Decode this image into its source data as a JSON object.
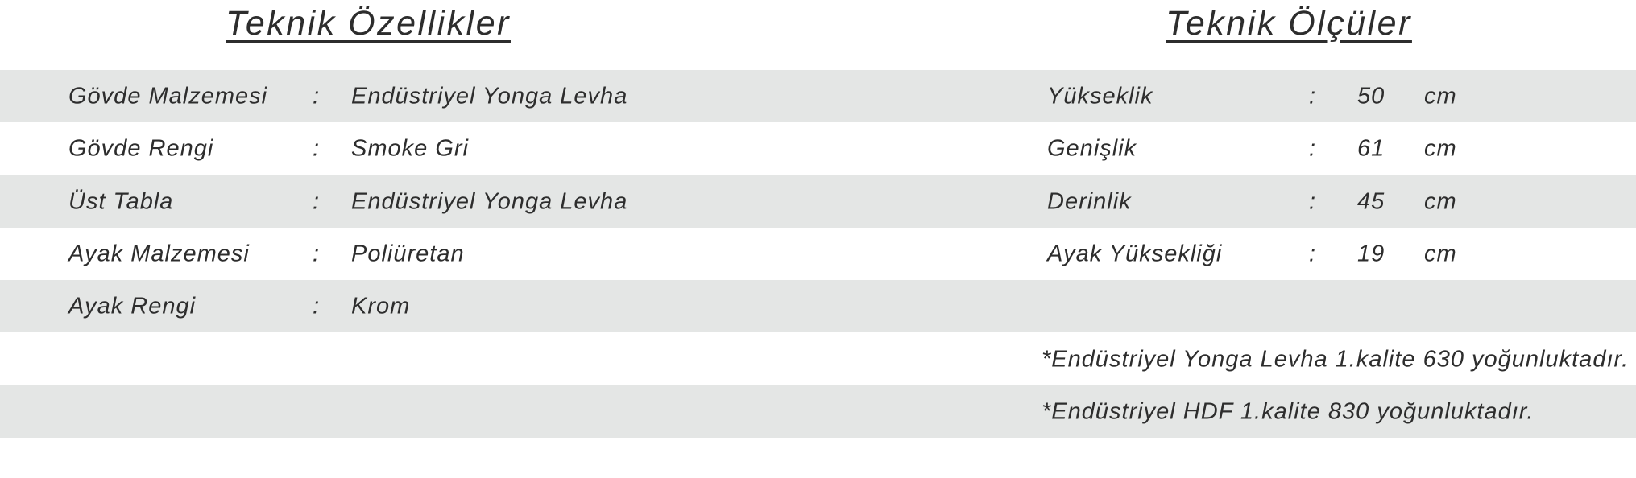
{
  "page": {
    "background_color": "#ffffff",
    "stripe_color": "#e4e6e5",
    "text_color": "#2d2d2d"
  },
  "left_section": {
    "title": "Teknik Özellikler",
    "rows": [
      {
        "label": "Gövde Malzemesi",
        "separator": ":",
        "value": "Endüstriyel Yonga Levha"
      },
      {
        "label": "Gövde Rengi",
        "separator": ":",
        "value": "Smoke Gri"
      },
      {
        "label": "Üst Tabla",
        "separator": ":",
        "value": "Endüstriyel Yonga Levha"
      },
      {
        "label": "Ayak Malzemesi",
        "separator": ":",
        "value": "Poliüretan"
      },
      {
        "label": "Ayak Rengi",
        "separator": ":",
        "value": "Krom"
      }
    ]
  },
  "right_section": {
    "title": "Teknik Ölçüler",
    "rows": [
      {
        "label": "Yükseklik",
        "separator": ":",
        "value": "50",
        "unit": "cm"
      },
      {
        "label": "Genişlik",
        "separator": ":",
        "value": "61",
        "unit": "cm"
      },
      {
        "label": "Derinlik",
        "separator": ":",
        "value": "45",
        "unit": "cm"
      },
      {
        "label": "Ayak Yüksekliği",
        "separator": ":",
        "value": "19",
        "unit": "cm"
      }
    ],
    "notes": [
      "*Endüstriyel Yonga Levha 1.kalite 630 yoğunluktadır.",
      "*Endüstriyel HDF 1.kalite 830 yoğunluktadır."
    ]
  }
}
